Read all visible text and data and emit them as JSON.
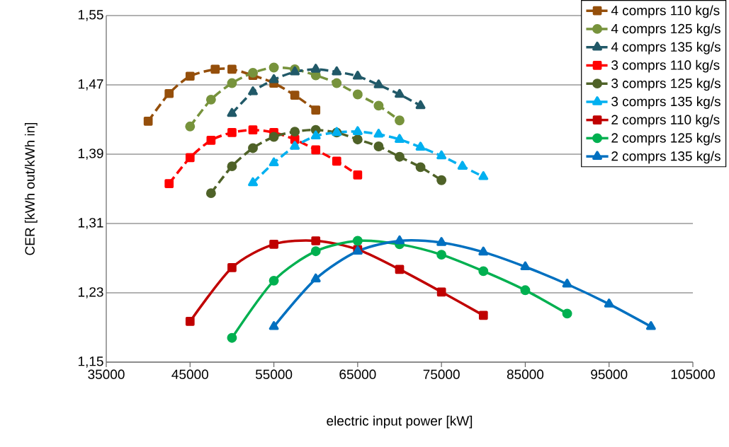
{
  "chart_data": {
    "type": "line",
    "xlabel": "electric input power [kW]",
    "ylabel": "CER [kWh out/kWh in]",
    "xlim": [
      35000,
      105000
    ],
    "xticks": [
      35000,
      45000,
      55000,
      65000,
      75000,
      85000,
      95000,
      105000
    ],
    "ylim": [
      1.15,
      1.55
    ],
    "yticks": [
      {
        "value": 1.15,
        "label": "1,15"
      },
      {
        "value": 1.23,
        "label": "1,23"
      },
      {
        "value": 1.31,
        "label": "1,31"
      },
      {
        "value": 1.39,
        "label": "1,39"
      },
      {
        "value": 1.47,
        "label": "1,47"
      },
      {
        "value": 1.55,
        "label": "1,55"
      }
    ],
    "grid": "y",
    "legend": "top right",
    "series": [
      {
        "name": "4 comprs 110 kg/s",
        "color": "#954f0b",
        "marker": "square",
        "line_style": "dashed",
        "x": [
          40000,
          42500,
          45000,
          48000,
          50000,
          52500,
          55000,
          57500,
          60000
        ],
        "values": [
          1.428,
          1.46,
          1.48,
          1.488,
          1.488,
          1.481,
          1.472,
          1.458,
          1.441
        ]
      },
      {
        "name": "4 comprs 125 kg/s",
        "color": "#77933c",
        "marker": "circle",
        "line_style": "dashed",
        "x": [
          45000,
          47500,
          50000,
          52500,
          55000,
          57500,
          60000,
          62500,
          65000,
          67500,
          70000
        ],
        "values": [
          1.422,
          1.453,
          1.472,
          1.484,
          1.49,
          1.488,
          1.481,
          1.472,
          1.459,
          1.446,
          1.429
        ]
      },
      {
        "name": "4 comprs 135 kg/s",
        "color": "#215968",
        "marker": "triangle",
        "line_style": "dashed",
        "x": [
          50000,
          52500,
          55000,
          57500,
          60000,
          62500,
          65000,
          67500,
          70000,
          72500
        ],
        "values": [
          1.437,
          1.462,
          1.476,
          1.485,
          1.488,
          1.485,
          1.48,
          1.47,
          1.459,
          1.446
        ]
      },
      {
        "name": "3 comprs 110 kg/s",
        "color": "#ff0000",
        "marker": "square",
        "line_style": "dashed",
        "x": [
          42500,
          45000,
          47500,
          50000,
          52500,
          55000,
          57500,
          60000,
          62500,
          65000
        ],
        "values": [
          1.356,
          1.386,
          1.406,
          1.415,
          1.418,
          1.415,
          1.407,
          1.395,
          1.382,
          1.366
        ]
      },
      {
        "name": "3 comprs 125 kg/s",
        "color": "#4f6228",
        "marker": "circle",
        "line_style": "dashed",
        "x": [
          47500,
          50000,
          52500,
          55000,
          57500,
          60000,
          62500,
          65000,
          67500,
          70000,
          72500,
          75000
        ],
        "values": [
          1.345,
          1.376,
          1.397,
          1.41,
          1.416,
          1.418,
          1.415,
          1.407,
          1.399,
          1.387,
          1.375,
          1.36
        ]
      },
      {
        "name": "3 comprs 135 kg/s",
        "color": "#00b0f0",
        "marker": "triangle",
        "line_style": "dashed",
        "x": [
          52500,
          55000,
          57500,
          60000,
          62500,
          65000,
          67500,
          70000,
          72500,
          75000,
          77500,
          80000
        ],
        "values": [
          1.357,
          1.38,
          1.399,
          1.411,
          1.415,
          1.416,
          1.413,
          1.407,
          1.398,
          1.388,
          1.376,
          1.364
        ]
      },
      {
        "name": "2 comprs 110 kg/s",
        "color": "#c00000",
        "marker": "square",
        "line_style": "solid",
        "x": [
          45000,
          50000,
          55000,
          60000,
          65000,
          70000,
          75000,
          80000
        ],
        "values": [
          1.197,
          1.259,
          1.286,
          1.29,
          1.28,
          1.257,
          1.231,
          1.204
        ]
      },
      {
        "name": "2 comprs 125 kg/s",
        "color": "#00b050",
        "marker": "circle",
        "line_style": "solid",
        "x": [
          50000,
          55000,
          60000,
          65000,
          70000,
          75000,
          80000,
          85000,
          90000
        ],
        "values": [
          1.178,
          1.244,
          1.278,
          1.29,
          1.286,
          1.274,
          1.255,
          1.233,
          1.206
        ]
      },
      {
        "name": "2 comprs 135 kg/s",
        "color": "#0070c0",
        "marker": "triangle",
        "line_style": "solid",
        "x": [
          55000,
          60000,
          65000,
          70000,
          75000,
          80000,
          85000,
          90000,
          95000,
          100000
        ],
        "values": [
          1.191,
          1.246,
          1.278,
          1.29,
          1.288,
          1.277,
          1.26,
          1.24,
          1.217,
          1.191
        ]
      }
    ]
  }
}
